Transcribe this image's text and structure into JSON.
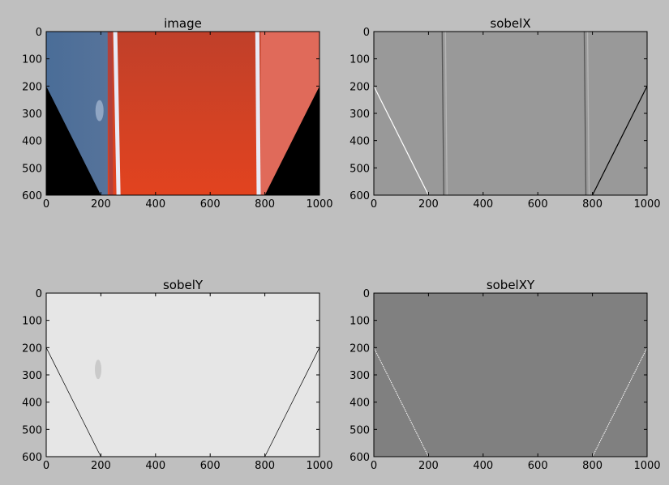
{
  "figure": {
    "background": "#bfbfbf"
  },
  "chart_data": [
    {
      "type": "image",
      "title": "image",
      "xlim": [
        0,
        1000
      ],
      "ylim": [
        600,
        0
      ],
      "xticks": [
        "0",
        "200",
        "400",
        "600",
        "800",
        "1000"
      ],
      "yticks": [
        "0",
        "100",
        "200",
        "300",
        "400",
        "500",
        "600"
      ],
      "colors": {
        "road_left": "#4f6f96",
        "road_main": "#d4462a",
        "road_right": "#e06a5a",
        "lane_line": "#e8eaf6",
        "mask": "#000000"
      }
    },
    {
      "type": "image",
      "title": "sobelX",
      "xlim": [
        0,
        1000
      ],
      "ylim": [
        600,
        0
      ],
      "xticks": [
        "0",
        "200",
        "400",
        "600",
        "800",
        "1000"
      ],
      "yticks": [
        "0",
        "100",
        "200",
        "300",
        "400",
        "500",
        "600"
      ],
      "colors": {
        "background": "#999999",
        "edge_dark": "#555555",
        "edge_light": "#ffffff"
      }
    },
    {
      "type": "image",
      "title": "sobelY",
      "xlim": [
        0,
        1000
      ],
      "ylim": [
        600,
        0
      ],
      "xticks": [
        "0",
        "200",
        "400",
        "600",
        "800",
        "1000"
      ],
      "yticks": [
        "0",
        "100",
        "200",
        "300",
        "400",
        "500",
        "600"
      ],
      "colors": {
        "background": "#e6e6e6",
        "edge_dark": "#000000"
      }
    },
    {
      "type": "image",
      "title": "sobelXY",
      "xlim": [
        0,
        1000
      ],
      "ylim": [
        600,
        0
      ],
      "xticks": [
        "0",
        "200",
        "400",
        "600",
        "800",
        "1000"
      ],
      "yticks": [
        "0",
        "100",
        "200",
        "300",
        "400",
        "500",
        "600"
      ],
      "colors": {
        "background": "#808080",
        "edge_light": "#ffffff"
      }
    }
  ]
}
